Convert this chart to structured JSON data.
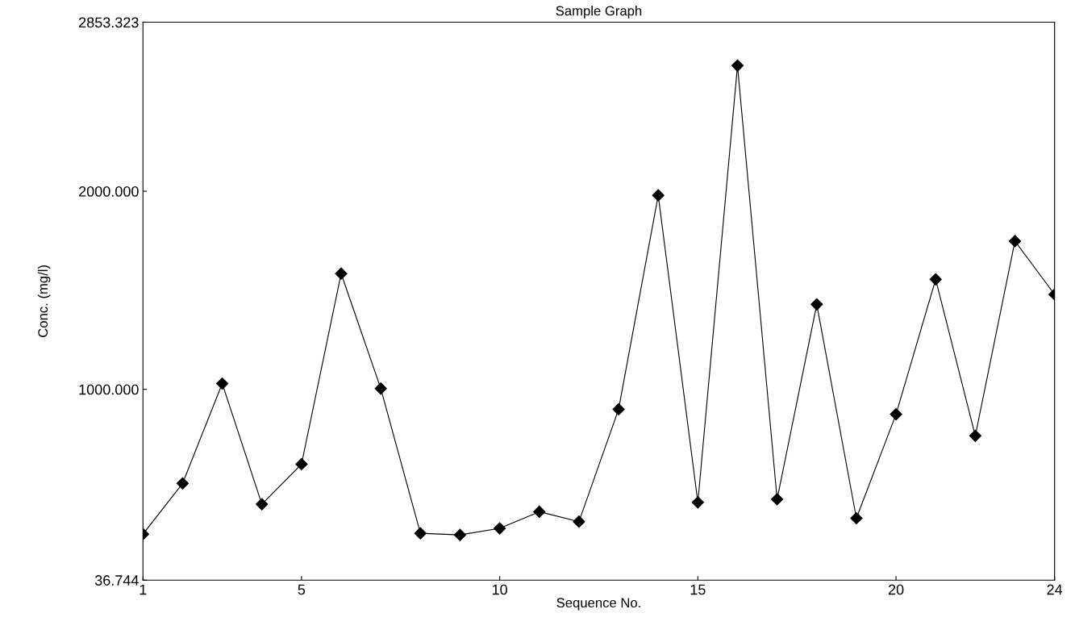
{
  "chart_data": {
    "type": "line",
    "title": "Sample Graph",
    "xlabel": "Sequence No.",
    "ylabel": "Conc. (mg/l)",
    "x": [
      1,
      2,
      3,
      4,
      5,
      6,
      7,
      8,
      9,
      10,
      11,
      12,
      13,
      14,
      15,
      16,
      17,
      18,
      19,
      20,
      21,
      22,
      23,
      24
    ],
    "series": [
      {
        "color": "#000000",
        "values": [
          269,
          525,
          1029,
          420,
          622,
          1584,
          1004,
          273,
          265,
          298,
          382,
          332,
          899,
          1979,
          429,
          2634,
          445,
          1429,
          349,
          874,
          1555,
          765,
          1748,
          1479
        ]
      }
    ],
    "xlim": [
      1,
      24
    ],
    "xticks": [
      1,
      5,
      10,
      15,
      20,
      24
    ],
    "ylim": [
      36.744,
      2853.323
    ],
    "yticks": [
      {
        "value": 36.744,
        "label": "36.744"
      },
      {
        "value": 1000,
        "label": "1000.000"
      },
      {
        "value": 2000,
        "label": "2000.000"
      },
      {
        "value": 2853.323,
        "label": "2853.323"
      }
    ],
    "marker": "diamond",
    "line_style": "solid",
    "grid": false,
    "legend": false
  }
}
